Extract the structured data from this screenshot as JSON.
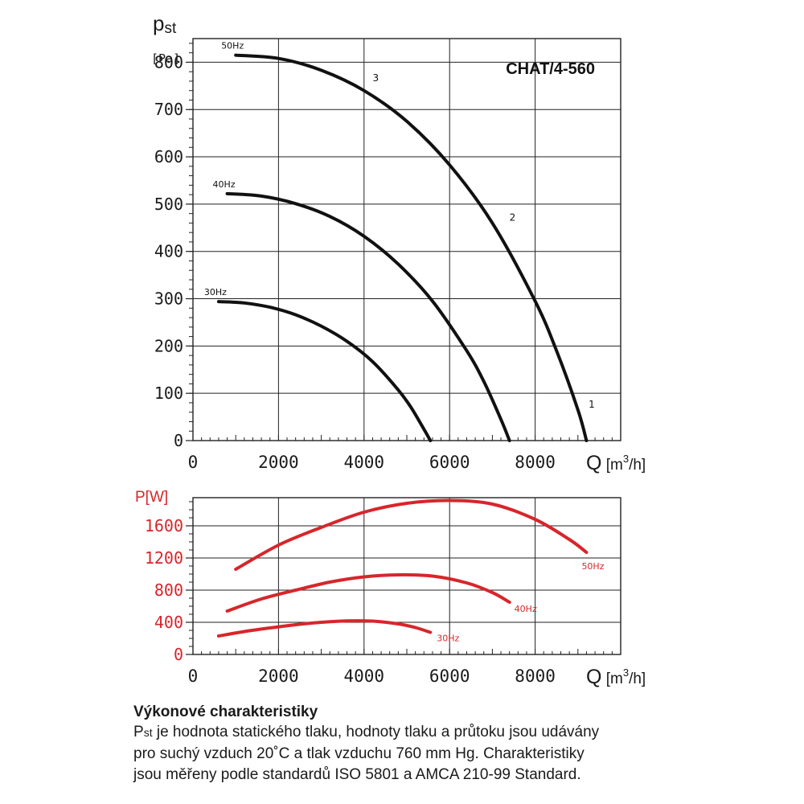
{
  "chart_data": [
    {
      "type": "line",
      "model_label": "CHAT/4-560",
      "ylabel_main": "p",
      "ylabel_sub": "st",
      "yunit": "[Pa]",
      "xlabel": "Q [m³/h]",
      "xlabel_q": "Q",
      "xlabel_unit_prefix": "[m",
      "xlabel_unit_sup": "3",
      "xlabel_unit_suffix": "/h]",
      "xlim": [
        0,
        10000
      ],
      "ylim": [
        0,
        850
      ],
      "x_ticks": [
        "0",
        "2000",
        "4000",
        "6000",
        "8000"
      ],
      "y_ticks": [
        "0",
        "100",
        "200",
        "300",
        "400",
        "500",
        "600",
        "700",
        "800"
      ],
      "grid": true,
      "line_color": "#111111",
      "series": [
        {
          "name": "50Hz",
          "x": [
            1000,
            2000,
            3000,
            4000,
            5000,
            6000,
            7000,
            8000,
            8500,
            9000,
            9200
          ],
          "y": [
            815,
            808,
            783,
            740,
            675,
            583,
            460,
            295,
            190,
            65,
            0
          ]
        },
        {
          "name": "40Hz",
          "x": [
            800,
            1600,
            2400,
            3200,
            4000,
            4800,
            5600,
            6400,
            6800,
            7200,
            7400
          ],
          "y": [
            522,
            517,
            501,
            474,
            432,
            373,
            295,
            190,
            125,
            45,
            0
          ]
        },
        {
          "name": "30Hz",
          "x": [
            600,
            1200,
            1800,
            2400,
            3000,
            3600,
            4200,
            4800,
            5100,
            5400,
            5550
          ],
          "y": [
            294,
            291,
            282,
            266,
            242,
            210,
            167,
            107,
            70,
            24,
            0
          ]
        }
      ],
      "point_labels": [
        {
          "text": "3",
          "x": 4200,
          "y": 760
        },
        {
          "text": "2",
          "x": 7400,
          "y": 465
        },
        {
          "text": "1",
          "x": 9250,
          "y": 70
        }
      ]
    },
    {
      "type": "line",
      "ylabel": "P[W]",
      "xlabel": "Q [m³/h]",
      "xlabel_q": "Q",
      "xlabel_unit_prefix": "[m",
      "xlabel_unit_sup": "3",
      "xlabel_unit_suffix": "/h]",
      "xlim": [
        0,
        10000
      ],
      "ylim": [
        0,
        1950
      ],
      "x_ticks": [
        "0",
        "2000",
        "4000",
        "6000",
        "8000"
      ],
      "y_ticks": [
        "0",
        "400",
        "800",
        "1200",
        "1600"
      ],
      "grid": true,
      "line_color": "#d7262b",
      "series": [
        {
          "name": "50Hz",
          "x": [
            1000,
            2000,
            3000,
            4000,
            5000,
            6000,
            7000,
            8000,
            8800,
            9200
          ],
          "y": [
            1060,
            1360,
            1580,
            1770,
            1880,
            1915,
            1870,
            1680,
            1430,
            1270
          ]
        },
        {
          "name": "40Hz",
          "x": [
            800,
            1600,
            2400,
            3200,
            4000,
            4800,
            5600,
            6400,
            7000,
            7400
          ],
          "y": [
            540,
            690,
            800,
            900,
            965,
            990,
            975,
            890,
            770,
            650
          ]
        },
        {
          "name": "30Hz",
          "x": [
            600,
            1200,
            1800,
            2400,
            3000,
            3600,
            4200,
            4800,
            5200,
            5550
          ],
          "y": [
            230,
            285,
            330,
            370,
            400,
            418,
            415,
            380,
            335,
            275
          ]
        }
      ]
    }
  ],
  "caption": {
    "title": "Výkonové charakteristiky",
    "line1_p": "P",
    "line1_sub": "st",
    "line1_rest": " je hodnota statického tlaku, hodnoty tlaku a průtoku jsou udávány",
    "line2": "pro suchý vzduch 20˚C a tlak vzduchu 760 mm Hg. Charakteristiky",
    "line3": "jsou měřeny podle standardů ISO 5801 a AMCA 210-99 Standard."
  }
}
